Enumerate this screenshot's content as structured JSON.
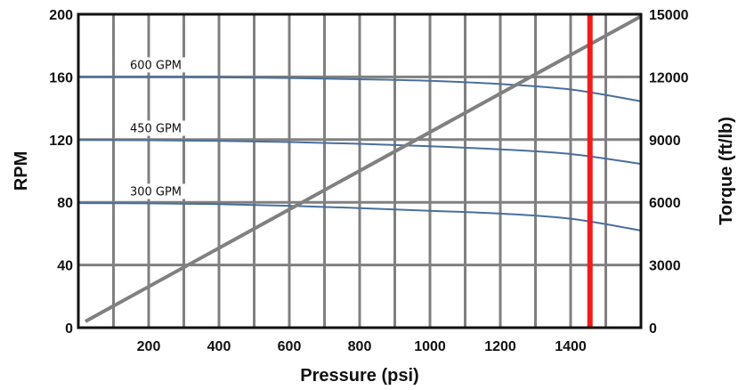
{
  "chart_data": {
    "type": "line",
    "xlabel": "Pressure (psi)",
    "ylabel": "RPM",
    "y2label": "Torque (ft/lb)",
    "xlim": [
      0,
      1600
    ],
    "ylim": [
      0,
      200
    ],
    "y2lim": [
      0,
      15000
    ],
    "x_ticks": [
      200,
      400,
      600,
      800,
      1000,
      1200,
      1400
    ],
    "x_tick_labels": [
      "200",
      "400",
      "600",
      "800",
      "1000",
      "1200",
      "1400"
    ],
    "y_ticks": [
      0,
      40,
      80,
      120,
      160,
      200
    ],
    "y_tick_labels": [
      "0",
      "40",
      "80",
      "120",
      "160",
      "200"
    ],
    "y2_ticks": [
      0,
      3000,
      6000,
      9000,
      12000,
      15000
    ],
    "y2_tick_labels": [
      "0",
      "3000",
      "6000",
      "9000",
      "12000",
      "15000"
    ],
    "grid": true,
    "series": [
      {
        "name": "600 GPM",
        "axis": "left",
        "color": "#4a6f9c",
        "x": [
          0,
          200,
          400,
          600,
          800,
          1000,
          1200,
          1400,
          1600
        ],
        "y": [
          160,
          160,
          159.8,
          159.3,
          158.5,
          157.5,
          155.5,
          152,
          144.5
        ]
      },
      {
        "name": "450 GPM",
        "axis": "left",
        "color": "#4a6f9c",
        "x": [
          0,
          200,
          400,
          600,
          800,
          1000,
          1200,
          1400,
          1600
        ],
        "y": [
          119.8,
          119.6,
          119.2,
          118.5,
          117.3,
          115.8,
          113.8,
          110.8,
          104.5
        ]
      },
      {
        "name": "300 GPM",
        "axis": "left",
        "color": "#4a6f9c",
        "x": [
          0,
          200,
          400,
          600,
          800,
          1000,
          1200,
          1400,
          1600
        ],
        "y": [
          79.5,
          79.3,
          78.8,
          77.8,
          76.3,
          74.6,
          72.8,
          69.5,
          62
        ]
      },
      {
        "axis": "right",
        "color": "#808080",
        "x": [
          20,
          1600
        ],
        "y": [
          300,
          14900
        ]
      }
    ],
    "vertical_markers": [
      {
        "x": 1455,
        "color": "#ee1c1c"
      }
    ]
  }
}
